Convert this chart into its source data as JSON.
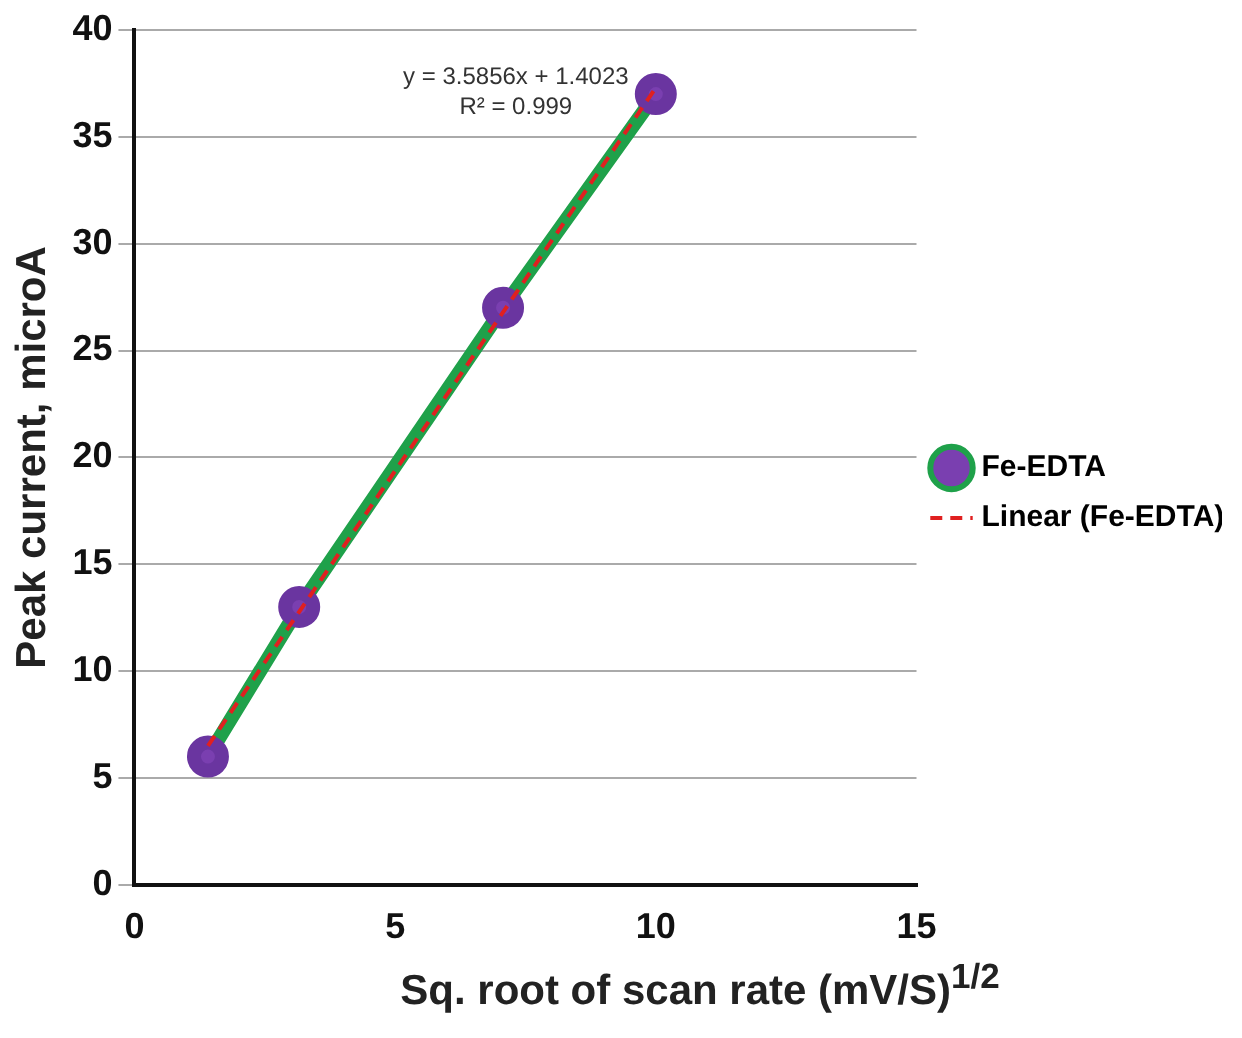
{
  "chart_data": {
    "type": "line",
    "xlabel": "Sq. root of scan rate (mV/S)$^{1/2}$",
    "ylabel": "Peak current, microA",
    "xlim": [
      0,
      15
    ],
    "xticks": [
      0,
      5,
      10,
      15
    ],
    "ylim": [
      0,
      40
    ],
    "yticks": [
      0,
      5,
      10,
      15,
      20,
      25,
      30,
      35,
      40
    ],
    "grid": "y",
    "legend": "right",
    "marker": "circle",
    "annotations": [
      "y = 3.5856x + 1.4023",
      "R² = 0.999"
    ],
    "series": [
      {
        "name": "Fe-EDTA",
        "color": "#1fa14a",
        "x": [
          1.41,
          3.16,
          7.07,
          10
        ],
        "values": [
          6,
          13,
          27,
          37
        ]
      },
      {
        "name": "Linear (Fe-EDTA)",
        "type": "line",
        "color": "#e02020",
        "line_style": "dashed",
        "marker": "none",
        "x": [
          1.41,
          10
        ],
        "values": [
          6.5,
          37.3
        ]
      }
    ]
  }
}
